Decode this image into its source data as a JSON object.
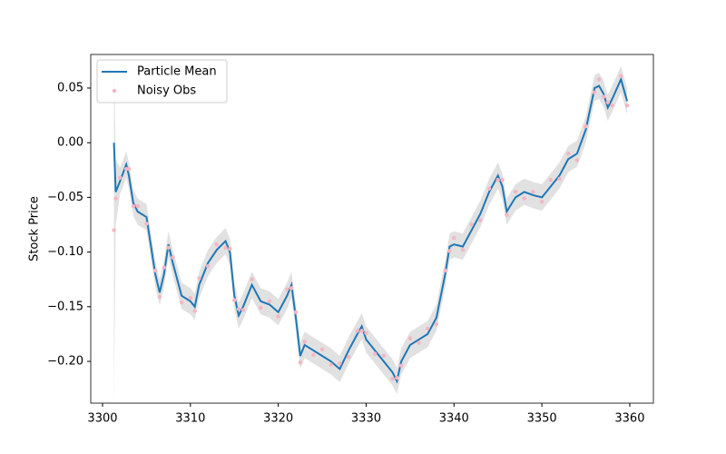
{
  "chart_data": {
    "type": "line",
    "ylabel": "Stock Price",
    "legend": "upper left",
    "grid": false,
    "xlim": [
      3298.66,
      3362.69
    ],
    "ylim": [
      -0.2382,
      0.0807
    ],
    "xticks": [
      3300,
      3310,
      3320,
      3330,
      3340,
      3350,
      3360
    ],
    "yticks": [
      {
        "value": -0.2,
        "label": "−0.20"
      },
      {
        "value": -0.15,
        "label": "−0.15"
      },
      {
        "value": -0.1,
        "label": "−0.10"
      },
      {
        "value": -0.05,
        "label": "−0.05"
      },
      {
        "value": 0,
        "label": "0.00"
      },
      {
        "value": 0.05,
        "label": "0.05"
      }
    ],
    "x": [
      3301.3,
      3301.5,
      3302,
      3302.7,
      3303,
      3303.5,
      3304,
      3305,
      3306,
      3306.5,
      3307,
      3307.5,
      3308,
      3309,
      3310,
      3310.5,
      3311,
      3312,
      3313,
      3314,
      3314.5,
      3315,
      3315.5,
      3316,
      3317,
      3318,
      3319,
      3320,
      3321,
      3321.5,
      3322,
      3322.5,
      3323,
      3324,
      3325,
      3326,
      3327,
      3328,
      3329,
      3329.5,
      3330,
      3331,
      3332,
      3333,
      3333.5,
      3334,
      3335,
      3336,
      3337,
      3338,
      3339,
      3339.5,
      3340,
      3341,
      3342,
      3343,
      3344,
      3345,
      3345.5,
      3346,
      3347,
      3348,
      3349,
      3350,
      3351,
      3352,
      3353,
      3354,
      3355,
      3356,
      3356.5,
      3357,
      3357.5,
      3358,
      3359,
      3359.7
    ],
    "band": {
      "color": "#d9d9d9",
      "lower": [
        -0.238,
        -0.075,
        -0.047,
        -0.032,
        -0.042,
        -0.067,
        -0.075,
        -0.08,
        -0.132,
        -0.149,
        -0.132,
        -0.105,
        -0.122,
        -0.152,
        -0.157,
        -0.162,
        -0.142,
        -0.122,
        -0.11,
        -0.102,
        -0.112,
        -0.152,
        -0.17,
        -0.162,
        -0.142,
        -0.157,
        -0.16,
        -0.167,
        -0.152,
        -0.142,
        -0.172,
        -0.207,
        -0.197,
        -0.202,
        -0.207,
        -0.212,
        -0.219,
        -0.202,
        -0.187,
        -0.18,
        -0.192,
        -0.202,
        -0.212,
        -0.222,
        -0.23,
        -0.212,
        -0.197,
        -0.192,
        -0.187,
        -0.172,
        -0.132,
        -0.107,
        -0.105,
        -0.107,
        -0.092,
        -0.077,
        -0.057,
        -0.042,
        -0.052,
        -0.075,
        -0.062,
        -0.057,
        -0.06,
        -0.062,
        -0.052,
        -0.042,
        -0.027,
        -0.022,
        0,
        0.038,
        0.04,
        0.033,
        0.02,
        0.028,
        0.046,
        0.026
      ],
      "upper": [
        0.08,
        -0.015,
        -0.023,
        -0.008,
        -0.018,
        -0.043,
        -0.051,
        -0.056,
        -0.108,
        -0.125,
        -0.108,
        -0.081,
        -0.098,
        -0.128,
        -0.133,
        -0.138,
        -0.118,
        -0.098,
        -0.086,
        -0.078,
        -0.088,
        -0.128,
        -0.146,
        -0.138,
        -0.118,
        -0.133,
        -0.136,
        -0.143,
        -0.128,
        -0.118,
        -0.148,
        -0.183,
        -0.173,
        -0.178,
        -0.183,
        -0.188,
        -0.195,
        -0.178,
        -0.163,
        -0.156,
        -0.168,
        -0.178,
        -0.188,
        -0.198,
        -0.206,
        -0.188,
        -0.173,
        -0.168,
        -0.163,
        -0.148,
        -0.108,
        -0.083,
        -0.081,
        -0.083,
        -0.068,
        -0.053,
        -0.033,
        -0.018,
        -0.028,
        -0.051,
        -0.038,
        -0.033,
        -0.036,
        -0.038,
        -0.028,
        -0.018,
        -0.003,
        0.002,
        0.024,
        0.062,
        0.064,
        0.057,
        0.044,
        0.052,
        0.07,
        0.05
      ]
    },
    "series": [
      {
        "name": "Particle Mean",
        "color": "#1f77b4",
        "type": "line",
        "values": [
          0,
          -0.045,
          -0.035,
          -0.02,
          -0.03,
          -0.055,
          -0.063,
          -0.068,
          -0.12,
          -0.137,
          -0.12,
          -0.093,
          -0.11,
          -0.14,
          -0.145,
          -0.15,
          -0.13,
          -0.11,
          -0.098,
          -0.09,
          -0.1,
          -0.14,
          -0.158,
          -0.15,
          -0.13,
          -0.145,
          -0.148,
          -0.155,
          -0.14,
          -0.13,
          -0.16,
          -0.195,
          -0.185,
          -0.19,
          -0.195,
          -0.2,
          -0.207,
          -0.19,
          -0.175,
          -0.168,
          -0.18,
          -0.19,
          -0.2,
          -0.21,
          -0.218,
          -0.2,
          -0.185,
          -0.18,
          -0.175,
          -0.16,
          -0.12,
          -0.095,
          -0.093,
          -0.095,
          -0.08,
          -0.065,
          -0.045,
          -0.03,
          -0.04,
          -0.063,
          -0.05,
          -0.045,
          -0.048,
          -0.05,
          -0.04,
          -0.03,
          -0.015,
          -0.01,
          0.012,
          0.05,
          0.052,
          0.045,
          0.032,
          0.04,
          0.058,
          0.038
        ]
      },
      {
        "name": "Noisy Obs",
        "color": "#f4b6c2",
        "type": "scatter",
        "values": [
          -0.08,
          -0.051,
          -0.032,
          -0.024,
          -0.024,
          -0.058,
          -0.058,
          -0.074,
          -0.117,
          -0.141,
          -0.114,
          -0.096,
          -0.105,
          -0.146,
          -0.142,
          -0.154,
          -0.124,
          -0.113,
          -0.093,
          -0.096,
          -0.097,
          -0.144,
          -0.152,
          -0.153,
          -0.125,
          -0.151,
          -0.145,
          -0.159,
          -0.134,
          -0.133,
          -0.155,
          -0.201,
          -0.182,
          -0.194,
          -0.189,
          -0.203,
          -0.202,
          -0.196,
          -0.172,
          -0.172,
          -0.174,
          -0.193,
          -0.195,
          -0.216,
          -0.215,
          -0.204,
          -0.179,
          -0.183,
          -0.17,
          -0.166,
          -0.117,
          -0.099,
          -0.087,
          -0.098,
          -0.075,
          -0.071,
          -0.042,
          -0.034,
          -0.034,
          -0.066,
          -0.045,
          -0.051,
          -0.045,
          -0.054,
          -0.034,
          -0.033,
          -0.01,
          -0.016,
          0.015,
          0.046,
          0.058,
          0.042,
          0.037,
          0.034,
          0.061,
          0.034
        ]
      }
    ]
  }
}
